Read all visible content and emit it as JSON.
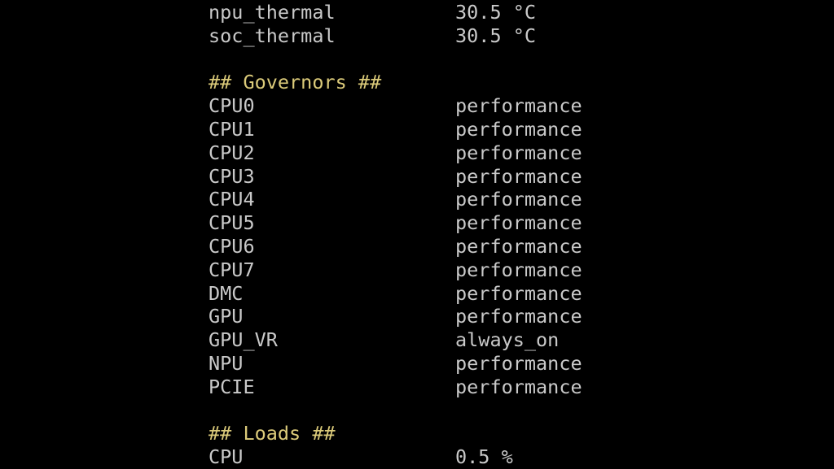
{
  "colors": {
    "background": "#000000",
    "text": "#c9c9c9",
    "heading": "#dccb7a"
  },
  "thermals": [
    {
      "name": "npu_thermal",
      "value": "30.5 °C"
    },
    {
      "name": "soc_thermal",
      "value": "30.5 °C"
    }
  ],
  "governors": {
    "heading": "## Governors ##",
    "items": [
      {
        "name": "CPU0",
        "value": "performance"
      },
      {
        "name": "CPU1",
        "value": "performance"
      },
      {
        "name": "CPU2",
        "value": "performance"
      },
      {
        "name": "CPU3",
        "value": "performance"
      },
      {
        "name": "CPU4",
        "value": "performance"
      },
      {
        "name": "CPU5",
        "value": "performance"
      },
      {
        "name": "CPU6",
        "value": "performance"
      },
      {
        "name": "CPU7",
        "value": "performance"
      },
      {
        "name": "DMC",
        "value": "performance"
      },
      {
        "name": "GPU",
        "value": "performance"
      },
      {
        "name": "GPU_VR",
        "value": "always_on"
      },
      {
        "name": "NPU",
        "value": "performance"
      },
      {
        "name": "PCIE",
        "value": "performance"
      }
    ]
  },
  "loads": {
    "heading": "## Loads ##",
    "items": [
      {
        "name": "CPU",
        "value": "0.5 %"
      }
    ]
  }
}
